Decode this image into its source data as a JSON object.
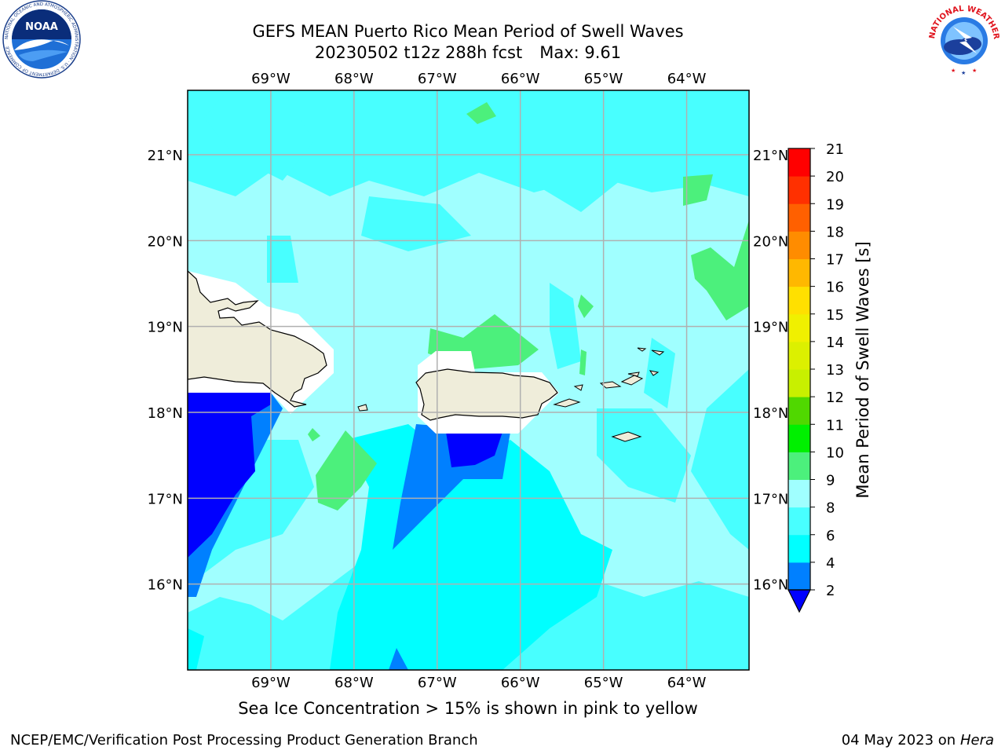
{
  "header": {
    "title_line1": "GEFS MEAN Puerto Rico Mean Period of Swell Waves",
    "title_date": "20230502 t12z 288h fcst",
    "title_max": "Max: 9.61"
  },
  "logos": {
    "left": {
      "icon": "noaa-logo",
      "text": "NOAA",
      "ring_text": "NATIONAL OCEANIC AND ATMOSPHERIC ADMINISTRATION · U.S. DEPARTMENT OF COMMERCE"
    },
    "right": {
      "icon": "nws-logo",
      "ring_text": "NATIONAL WEATHER SERVICE"
    }
  },
  "map": {
    "lon_labels": [
      "69°W",
      "68°W",
      "67°W",
      "66°W",
      "65°W",
      "64°W"
    ],
    "lat_labels": [
      "21°N",
      "20°N",
      "19°N",
      "18°N",
      "17°N",
      "16°N"
    ],
    "lon_values": [
      -69,
      -68,
      -67,
      -66,
      -65,
      -64
    ],
    "lat_values": [
      21,
      20,
      19,
      18,
      17,
      16
    ],
    "extent": {
      "lon_min": -70,
      "lon_max": -63.25,
      "lat_min": 15,
      "lat_max": 21.75
    },
    "land_color": "#efedda",
    "grid_color": "#b0b0b0"
  },
  "colorbar": {
    "label": "Mean Period of Swell Waves [s]",
    "ticks": [
      "2",
      "4",
      "6",
      "8",
      "9",
      "10",
      "11",
      "12",
      "13",
      "14",
      "15",
      "16",
      "17",
      "18",
      "19",
      "20",
      "21"
    ],
    "bins": [
      {
        "lo": 2,
        "hi": 4,
        "color": "#0080ff"
      },
      {
        "lo": 4,
        "hi": 6,
        "color": "#00ffff"
      },
      {
        "lo": 6,
        "hi": 8,
        "color": "#48ffff"
      },
      {
        "lo": 8,
        "hi": 9,
        "color": "#a0ffff"
      },
      {
        "lo": 9,
        "hi": 10,
        "color": "#4cf07c"
      },
      {
        "lo": 10,
        "hi": 11,
        "color": "#00f000"
      },
      {
        "lo": 11,
        "hi": 12,
        "color": "#50d800"
      },
      {
        "lo": 12,
        "hi": 13,
        "color": "#c8f000"
      },
      {
        "lo": 13,
        "hi": 14,
        "color": "#dcf000"
      },
      {
        "lo": 14,
        "hi": 15,
        "color": "#f0f000"
      },
      {
        "lo": 15,
        "hi": 16,
        "color": "#ffe000"
      },
      {
        "lo": 16,
        "hi": 17,
        "color": "#ffb800"
      },
      {
        "lo": 17,
        "hi": 18,
        "color": "#ff8c00"
      },
      {
        "lo": 18,
        "hi": 19,
        "color": "#ff6000"
      },
      {
        "lo": 19,
        "hi": 20,
        "color": "#ff3000"
      },
      {
        "lo": 20,
        "hi": 21,
        "color": "#ff0000"
      }
    ],
    "under_color": "#0000ff"
  },
  "caption": "Sea Ice Concentration > 15% is shown in pink to yellow",
  "footer": {
    "left": "NCEP/EMC/Verification Post Processing Product Generation Branch",
    "right_date": "04 May 2023 on",
    "right_host": "Hera"
  }
}
